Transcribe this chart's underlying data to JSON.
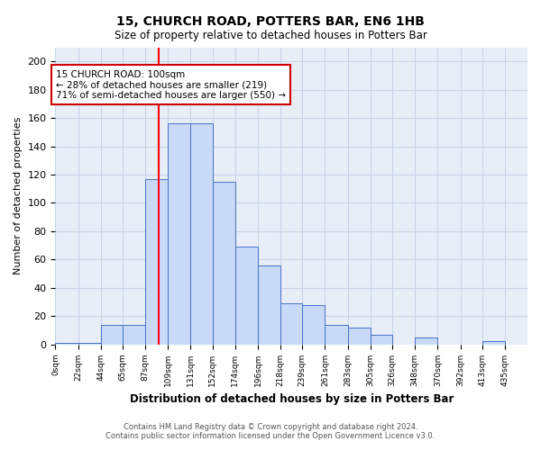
{
  "title": "15, CHURCH ROAD, POTTERS BAR, EN6 1HB",
  "subtitle": "Size of property relative to detached houses in Potters Bar",
  "xlabel": "Distribution of detached houses by size in Potters Bar",
  "ylabel": "Number of detached properties",
  "bin_labels": [
    "0sqm",
    "22sqm",
    "44sqm",
    "65sqm",
    "87sqm",
    "109sqm",
    "131sqm",
    "152sqm",
    "174sqm",
    "196sqm",
    "218sqm",
    "239sqm",
    "261sqm",
    "283sqm",
    "305sqm",
    "326sqm",
    "348sqm",
    "370sqm",
    "392sqm",
    "413sqm",
    "435sqm"
  ],
  "bin_edges": [
    0,
    22,
    44,
    65,
    87,
    109,
    131,
    152,
    174,
    196,
    218,
    239,
    261,
    283,
    305,
    326,
    348,
    370,
    392,
    413,
    435,
    457
  ],
  "bar_heights": [
    1,
    1,
    14,
    14,
    117,
    156,
    156,
    115,
    69,
    56,
    29,
    28,
    14,
    12,
    7,
    0,
    5,
    0,
    0,
    2,
    0
  ],
  "bar_color": "#c9daf8",
  "bar_edge_color": "#4472c4",
  "red_line_x": 100,
  "annotation_title": "15 CHURCH ROAD: 100sqm",
  "annotation_line1": "← 28% of detached houses are smaller (219)",
  "annotation_line2": "71% of semi-detached houses are larger (550) →",
  "annotation_box_color": "#ffffff",
  "annotation_box_edge": "#cc0000",
  "ylim": [
    0,
    210
  ],
  "yticks": [
    0,
    20,
    40,
    60,
    80,
    100,
    120,
    140,
    160,
    180,
    200
  ],
  "grid_color": "#c8d4e8",
  "footer_line1": "Contains HM Land Registry data © Crown copyright and database right 2024.",
  "footer_line2": "Contains public sector information licensed under the Open Government Licence v3.0.",
  "bg_color": "#e8eef8"
}
